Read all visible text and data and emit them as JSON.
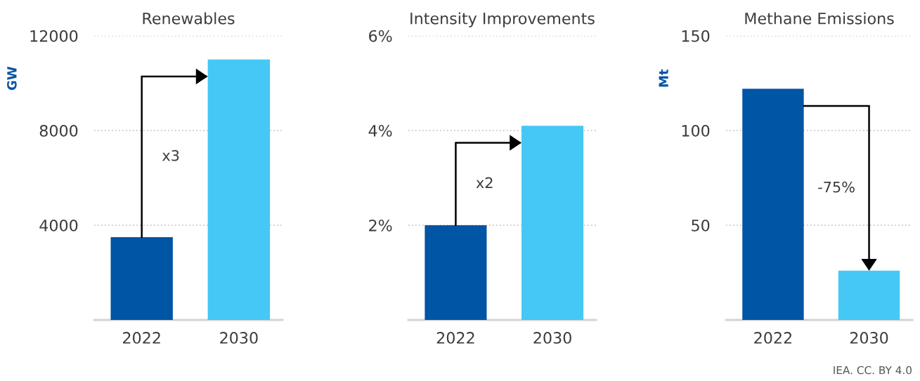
{
  "chart_data": [
    {
      "type": "bar",
      "title": "Renewables",
      "ylabel": "GW",
      "categories": [
        "2022",
        "2030"
      ],
      "values": [
        3500,
        11000
      ],
      "colors": [
        "#0055a5",
        "#45c8f5"
      ],
      "ylim": [
        0,
        12000
      ],
      "yticks": [
        4000,
        8000,
        12000
      ],
      "grid": "y",
      "annotations": [
        "x3"
      ]
    },
    {
      "type": "bar",
      "title": "Intensity Improvements",
      "categories": [
        "2022",
        "2030"
      ],
      "values": [
        2,
        4.1
      ],
      "colors": [
        "#0055a5",
        "#45c8f5"
      ],
      "ylim": [
        0,
        6
      ],
      "yticks": [
        {
          "value": 2,
          "label": "2%"
        },
        {
          "value": 4,
          "label": "4%"
        },
        {
          "value": 6,
          "label": "6%"
        }
      ],
      "grid": "y",
      "annotations": [
        "x2"
      ]
    },
    {
      "type": "bar",
      "title": "Methane Emissions",
      "ylabel": "Mt",
      "categories": [
        "2022",
        "2030"
      ],
      "values": [
        122,
        26
      ],
      "colors": [
        "#0055a5",
        "#45c8f5"
      ],
      "ylim": [
        0,
        150
      ],
      "yticks": [
        50,
        100,
        150
      ],
      "grid": "y",
      "annotations": [
        "-75%",
        "IEA. CC. BY 4.0"
      ]
    }
  ]
}
